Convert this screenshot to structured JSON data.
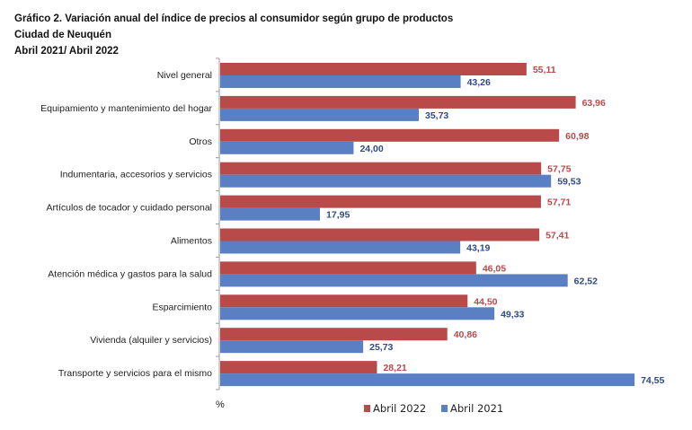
{
  "chart_data": {
    "type": "bar",
    "orientation": "horizontal",
    "title": "Gráfico 2. Variación anual del índice de precios al consumidor según grupo de productos",
    "subtitle": "Ciudad de Neuquén",
    "period": "Abril 2021/ Abril 2022",
    "xlabel": "%",
    "ylabel": "",
    "xlim": [
      0,
      80
    ],
    "grid": false,
    "legend_position": "bottom",
    "categories": [
      "Nivel general",
      "Equipamiento y mantenimiento del hogar",
      "Otros",
      "Indumentaria, accesorios y servicios",
      "Artículos de tocador y cuidado personal",
      "Alimentos",
      "Atención médica y gastos para la salud",
      "Esparcimiento",
      "Vivienda (alquiler y servicios)",
      "Transporte y servicios para el mismo"
    ],
    "series": [
      {
        "name": "Abril 2022",
        "color": "#B84A4A",
        "label_color": "#B84A4A",
        "values": [
          55.11,
          63.96,
          60.98,
          57.75,
          57.71,
          57.41,
          46.05,
          44.5,
          40.86,
          28.21
        ],
        "labels": [
          "55,11",
          "63,96",
          "60,98",
          "57,75",
          "57,71",
          "57,41",
          "46,05",
          "44,50",
          "40,86",
          "28,21"
        ]
      },
      {
        "name": "Abril 2021",
        "color": "#5A7FC2",
        "label_color": "#2F4A86",
        "values": [
          43.26,
          35.73,
          24.0,
          59.53,
          17.95,
          43.19,
          62.52,
          49.33,
          25.73,
          74.55
        ],
        "labels": [
          "43,26",
          "35,73",
          "24,00",
          "59,53",
          "17,95",
          "43,19",
          "62,52",
          "49,33",
          "25,73",
          "74,55"
        ]
      }
    ]
  }
}
